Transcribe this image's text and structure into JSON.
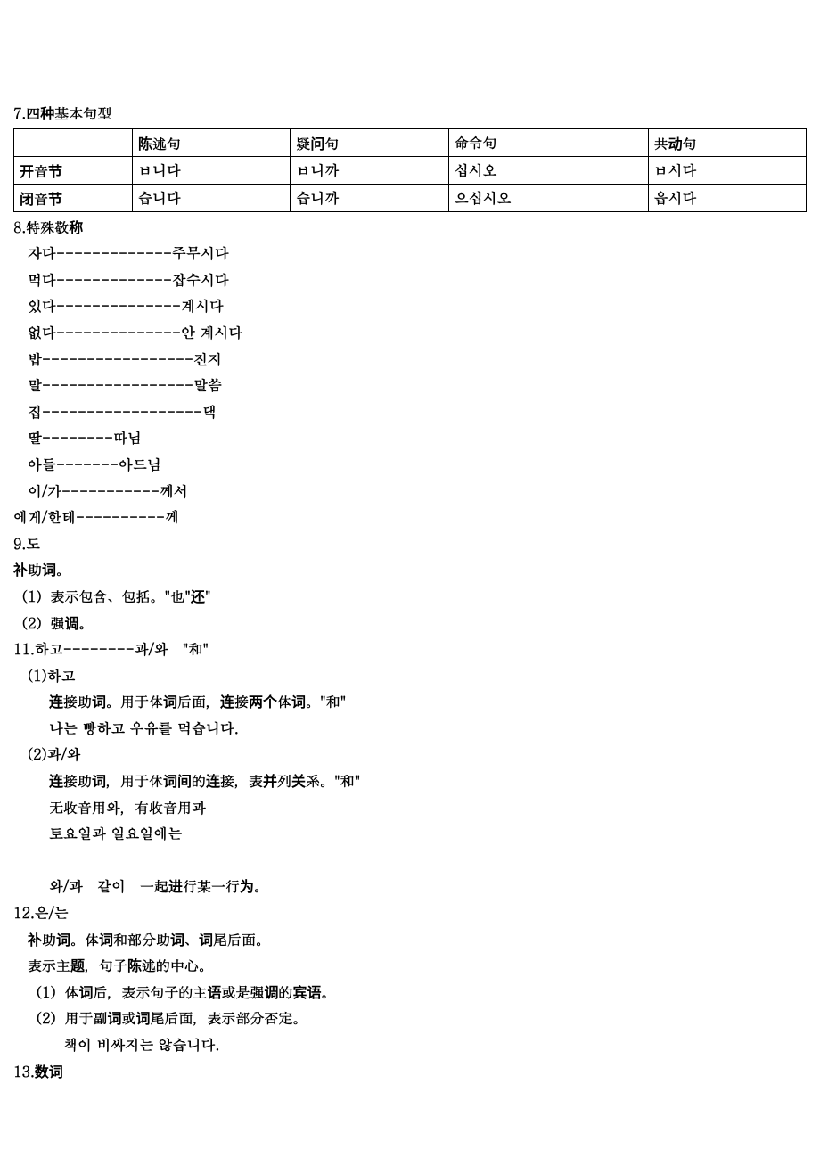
{
  "section7": {
    "title": "7.四种基本句型",
    "table": {
      "header": [
        "",
        "陈述句",
        "疑问句",
        "命令句",
        "共动句"
      ],
      "rows": [
        [
          "开音节",
          "ㅂ니다",
          "ㅂ니까",
          "십시오",
          "ㅂ시다"
        ],
        [
          "闭音节",
          "습니다",
          "습니까",
          "으십시오",
          "읍시다"
        ]
      ]
    }
  },
  "section8": {
    "title": "8.特殊敬称",
    "lines": [
      "자다-------------주무시다",
      "먹다-------------잡수시다",
      "있다--------------계시다",
      "없다--------------안 계시다",
      "",
      "밥-----------------진지",
      "말-----------------말씀",
      "집------------------댁",
      "딸--------따님",
      "아들-------아드님",
      "이/가-----------께서",
      "에게/한테----------께"
    ]
  },
  "section9": {
    "title": "9.도",
    "sub1": "补助词。",
    "sub2": "（1）表示包含、包括。\"也\"还\"",
    "sub3": "（2）强调。"
  },
  "section11": {
    "title": "11.하고--------과/와　\"和\"",
    "p1_title": "(1)하고",
    "p1_l1": "连接助词。用于体词后面，连接两个体词。\"和\"",
    "p1_l2": "나는 빵하고 우유를 먹습니다.",
    "p2_title": "(2)과/와",
    "p2_l1": "连接助词，用于体词间的连接，表并列关系。\"和\"",
    "p2_l2": "无收音用와，有收音用과",
    "p2_l3": "토요일과 일요일에는",
    "p3": "와/과　같이　一起进行某一行为。"
  },
  "section12": {
    "title": "12.은/는",
    "l1": "补助词。体词和部分助词、词尾后面。",
    "l2": "表示主题，句子陈述的中心。",
    "l3": "（1）体词后，表示句子的主语或是强调的宾语。",
    "l4": "（2）用于副词或词尾后面，表示部分否定。",
    "l5": "책이 비싸지는 않습니다."
  },
  "section13": {
    "title": "13.数词"
  }
}
